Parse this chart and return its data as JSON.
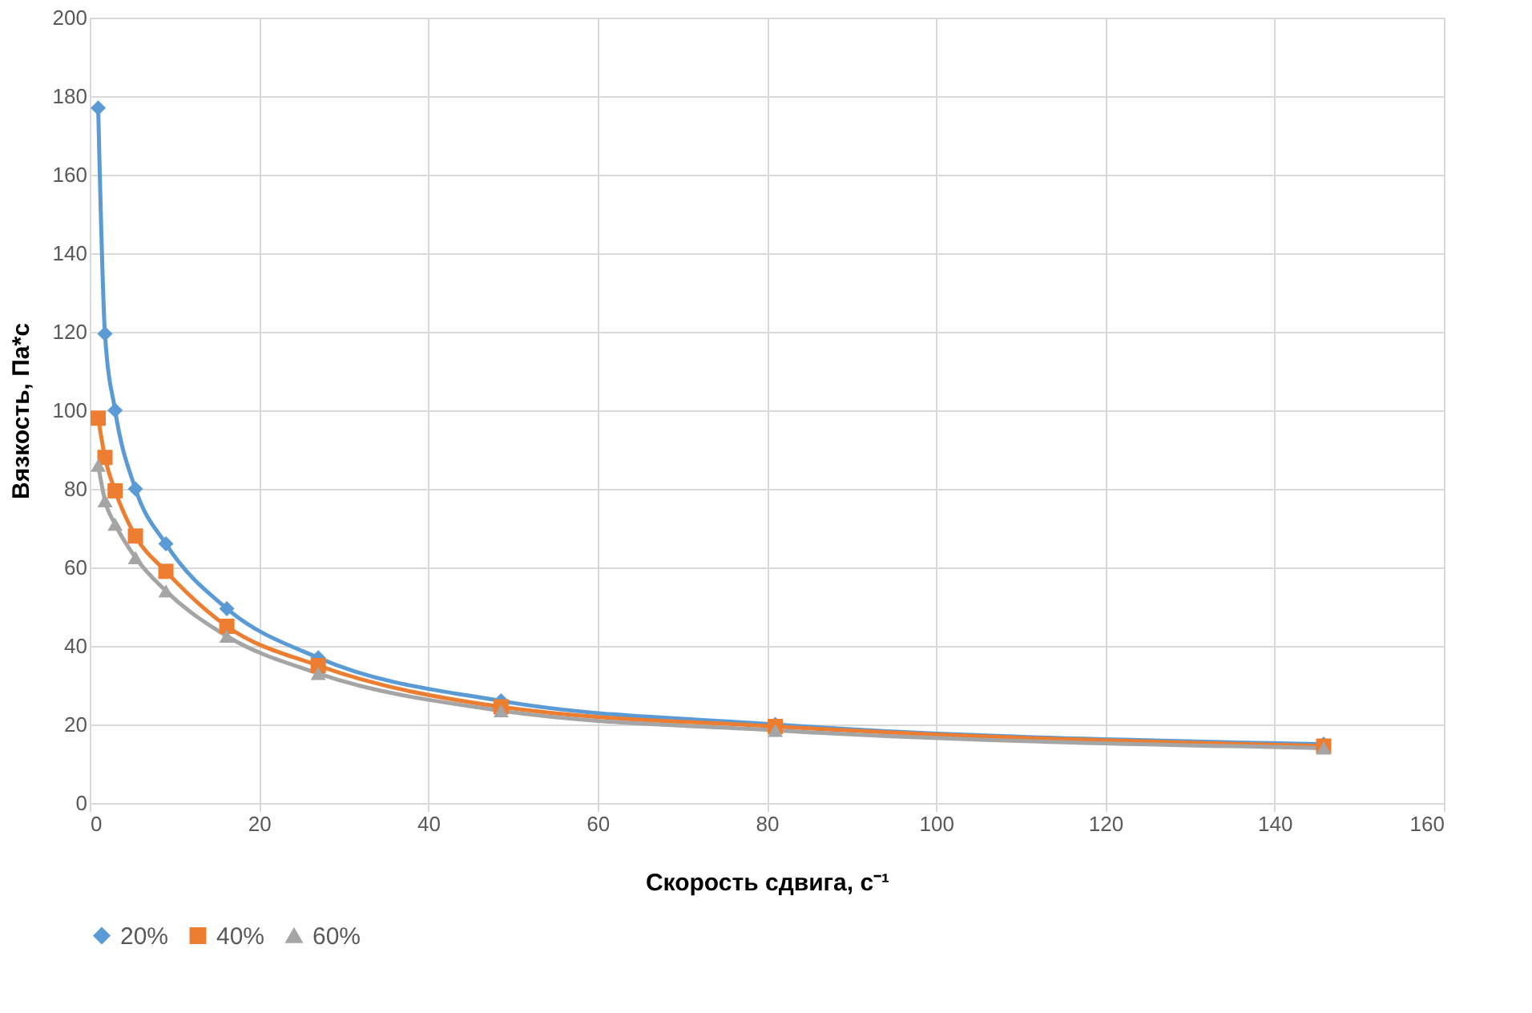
{
  "chart_data": {
    "type": "line",
    "xlabel": "Скорость сдвига, с⁻¹",
    "ylabel": "Вязкость, Па*с",
    "x": [
      1,
      1.8,
      3,
      5.4,
      9,
      16.2,
      27,
      48.6,
      81,
      145.8
    ],
    "series": [
      {
        "name": "20%",
        "color": "#5b9bd5",
        "marker": "diamond",
        "values": [
          177,
          119.5,
          100,
          80,
          66,
          49.5,
          37,
          26,
          20,
          15
        ]
      },
      {
        "name": "40%",
        "color": "#ed7d31",
        "marker": "square",
        "values": [
          98,
          88,
          79.5,
          68,
          59,
          45,
          35,
          24.5,
          19.5,
          14.5
        ]
      },
      {
        "name": "60%",
        "color": "#a5a5a5",
        "marker": "triangle",
        "values": [
          86,
          77,
          71,
          62.5,
          54,
          42.5,
          33,
          23.5,
          18.5,
          14
        ]
      }
    ],
    "xlim": [
      0,
      160
    ],
    "xticks": [
      0,
      20,
      40,
      60,
      80,
      100,
      120,
      140,
      160
    ],
    "ylim": [
      0,
      200
    ],
    "yticks": [
      0,
      20,
      40,
      60,
      80,
      100,
      120,
      140,
      160,
      180,
      200
    ],
    "grid": true,
    "legend": "bottom",
    "line_style": "solid"
  }
}
